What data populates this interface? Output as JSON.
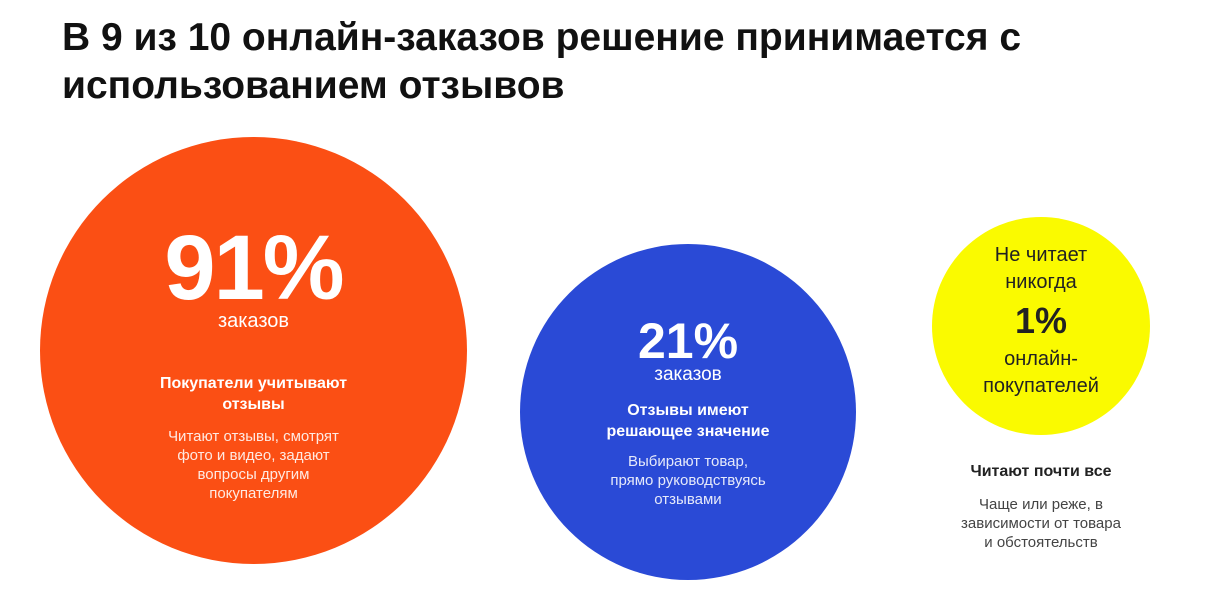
{
  "title": {
    "line1": "В 9 из 10 онлайн-заказов решение принимается с",
    "line2": "использованием отзывов"
  },
  "stats": [
    {
      "percent": "91%",
      "unit": "заказов",
      "heading": [
        "Покупатели учитывают",
        "отзывы"
      ],
      "body": [
        "Читают отзывы, смотрят",
        "фото и видео, задают",
        "вопросы другим",
        "покупателям"
      ],
      "color": "#fb4f14"
    },
    {
      "percent": "21%",
      "unit": "заказов",
      "heading": [
        "Отзывы имеют",
        "решающее значение"
      ],
      "body": [
        "Выбирают товар,",
        "прямо руководствуясь",
        "отзывами"
      ],
      "color": "#2a4ad6"
    },
    {
      "top_text": [
        "Не читает",
        "никогда"
      ],
      "percent": "1%",
      "unit": [
        "онлайн-",
        "покупателей"
      ],
      "heading": "Читают почти все",
      "body": [
        "Чаще или реже, в",
        "зависимости от товара",
        "и обстоятельств"
      ],
      "color": "#fafa00"
    }
  ]
}
